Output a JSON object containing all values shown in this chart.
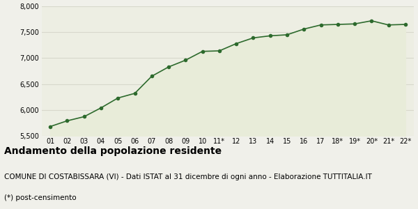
{
  "x_labels": [
    "01",
    "02",
    "03",
    "04",
    "05",
    "06",
    "07",
    "08",
    "09",
    "10",
    "11*",
    "12",
    "13",
    "14",
    "15",
    "16",
    "17",
    "18*",
    "19*",
    "20*",
    "21*",
    "22*"
  ],
  "values": [
    5680,
    5790,
    5870,
    6040,
    6230,
    6320,
    6650,
    6830,
    6960,
    7130,
    7140,
    7280,
    7390,
    7430,
    7450,
    7560,
    7640,
    7650,
    7660,
    7720,
    7640,
    7650
  ],
  "line_color": "#2d6a2d",
  "fill_color": "#e8ecd9",
  "marker_color": "#2d6a2d",
  "plot_bg_color": "#edeee3",
  "figure_bg_color": "#f0f0ea",
  "ylim": [
    5500,
    8000
  ],
  "yticks": [
    5500,
    6000,
    6500,
    7000,
    7500,
    8000
  ],
  "grid_color": "#d8d8cc",
  "title": "Andamento della popolazione residente",
  "subtitle": "COMUNE DI COSTABISSARA (VI) - Dati ISTAT al 31 dicembre di ogni anno - Elaborazione TUTTITALIA.IT",
  "footnote": "(*) post-censimento",
  "title_fontsize": 10,
  "subtitle_fontsize": 7.5,
  "footnote_fontsize": 7.5
}
